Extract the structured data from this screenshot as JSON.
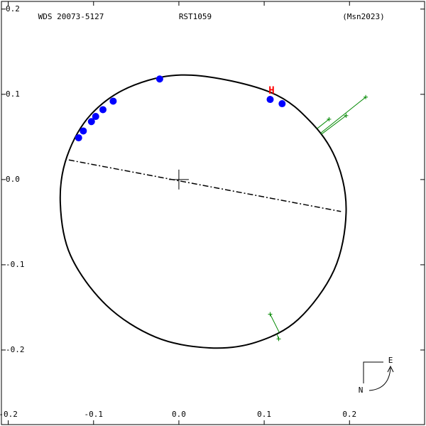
{
  "chart_data": {
    "type": "orbit",
    "title": "WDS 20073-5127",
    "subtitle": "RST1059",
    "reference": "(Msn2023)",
    "xlim": [
      -0.208,
      0.288
    ],
    "ylim": [
      -0.2875,
      0.209
    ],
    "xticks": [
      -0.2,
      -0.1,
      {
        "value": 0,
        "label": "0.0"
      },
      0.1,
      0.2
    ],
    "yticks": [
      0.2,
      0.1,
      {
        "value": 0,
        "label": "0.0"
      },
      -0.1,
      -0.2
    ],
    "orbit": {
      "color": "#000000",
      "x": [
        0.015,
        0.107,
        0.157,
        0.186,
        0.196,
        0.182,
        0.14,
        0.09,
        0.036,
        -0.027,
        -0.085,
        -0.127,
        -0.139,
        -0.131,
        -0.102,
        -0.052
      ],
      "y": [
        0.1225,
        0.1025,
        0.065,
        0.019,
        -0.039,
        -0.106,
        -0.164,
        -0.191,
        -0.1975,
        -0.185,
        -0.1475,
        -0.089,
        -0.027,
        0.0275,
        0.0775,
        0.111
      ]
    },
    "line_of_nodes": {
      "x": [
        -0.129,
        0.19
      ],
      "y": [
        0.023,
        -0.0375
      ]
    },
    "series": [
      {
        "name": "observations",
        "color": "#0000ff",
        "x": [
          -0.0225,
          -0.077,
          -0.089,
          -0.0975,
          -0.1025,
          -0.112,
          -0.1175,
          0.107,
          0.121
        ],
        "y": [
          0.118,
          0.092,
          0.082,
          0.074,
          0.068,
          0.057,
          0.049,
          0.094,
          0.089
        ]
      },
      {
        "name": "residuals",
        "color": "#008800",
        "x": [
          0.219,
          0.196,
          0.176,
          0.107,
          0.117
        ],
        "y": [
          0.0967,
          0.075,
          0.0708,
          -0.158,
          -0.187
        ]
      }
    ],
    "annotation": {
      "text": "H",
      "x": 0.107,
      "y": 0.094,
      "color": "#ff0000"
    },
    "compass": {
      "east": "E",
      "north": "N"
    }
  }
}
